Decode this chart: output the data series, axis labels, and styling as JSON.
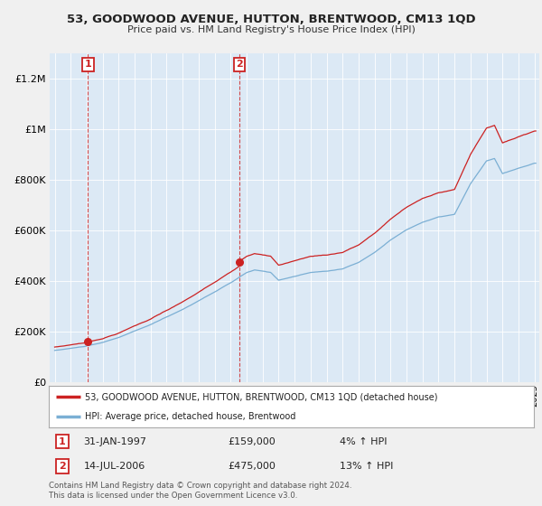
{
  "title": "53, GOODWOOD AVENUE, HUTTON, BRENTWOOD, CM13 1QD",
  "subtitle": "Price paid vs. HM Land Registry's House Price Index (HPI)",
  "sale1_date": "31-JAN-1997",
  "sale1_price": 159000,
  "sale1_hpi": "4% ↑ HPI",
  "sale2_date": "14-JUL-2006",
  "sale2_price": 475000,
  "sale2_hpi": "13% ↑ HPI",
  "legend_line1": "53, GOODWOOD AVENUE, HUTTON, BRENTWOOD, CM13 1QD (detached house)",
  "legend_line2": "HPI: Average price, detached house, Brentwood",
  "footnote": "Contains HM Land Registry data © Crown copyright and database right 2024.\nThis data is licensed under the Open Government Licence v3.0.",
  "hpi_color": "#7bafd4",
  "price_color": "#cc2222",
  "sale_marker_color": "#cc2222",
  "background_color": "#f0f0f0",
  "plot_bg_color": "#dce9f5",
  "grid_color": "#ffffff",
  "ylim": [
    0,
    1300000
  ],
  "yticks": [
    0,
    200000,
    400000,
    600000,
    800000,
    1000000,
    1200000
  ],
  "xlim_start": 1994.7,
  "xlim_end": 2025.3,
  "sale1_x": 1997.08,
  "sale2_x": 2006.54
}
